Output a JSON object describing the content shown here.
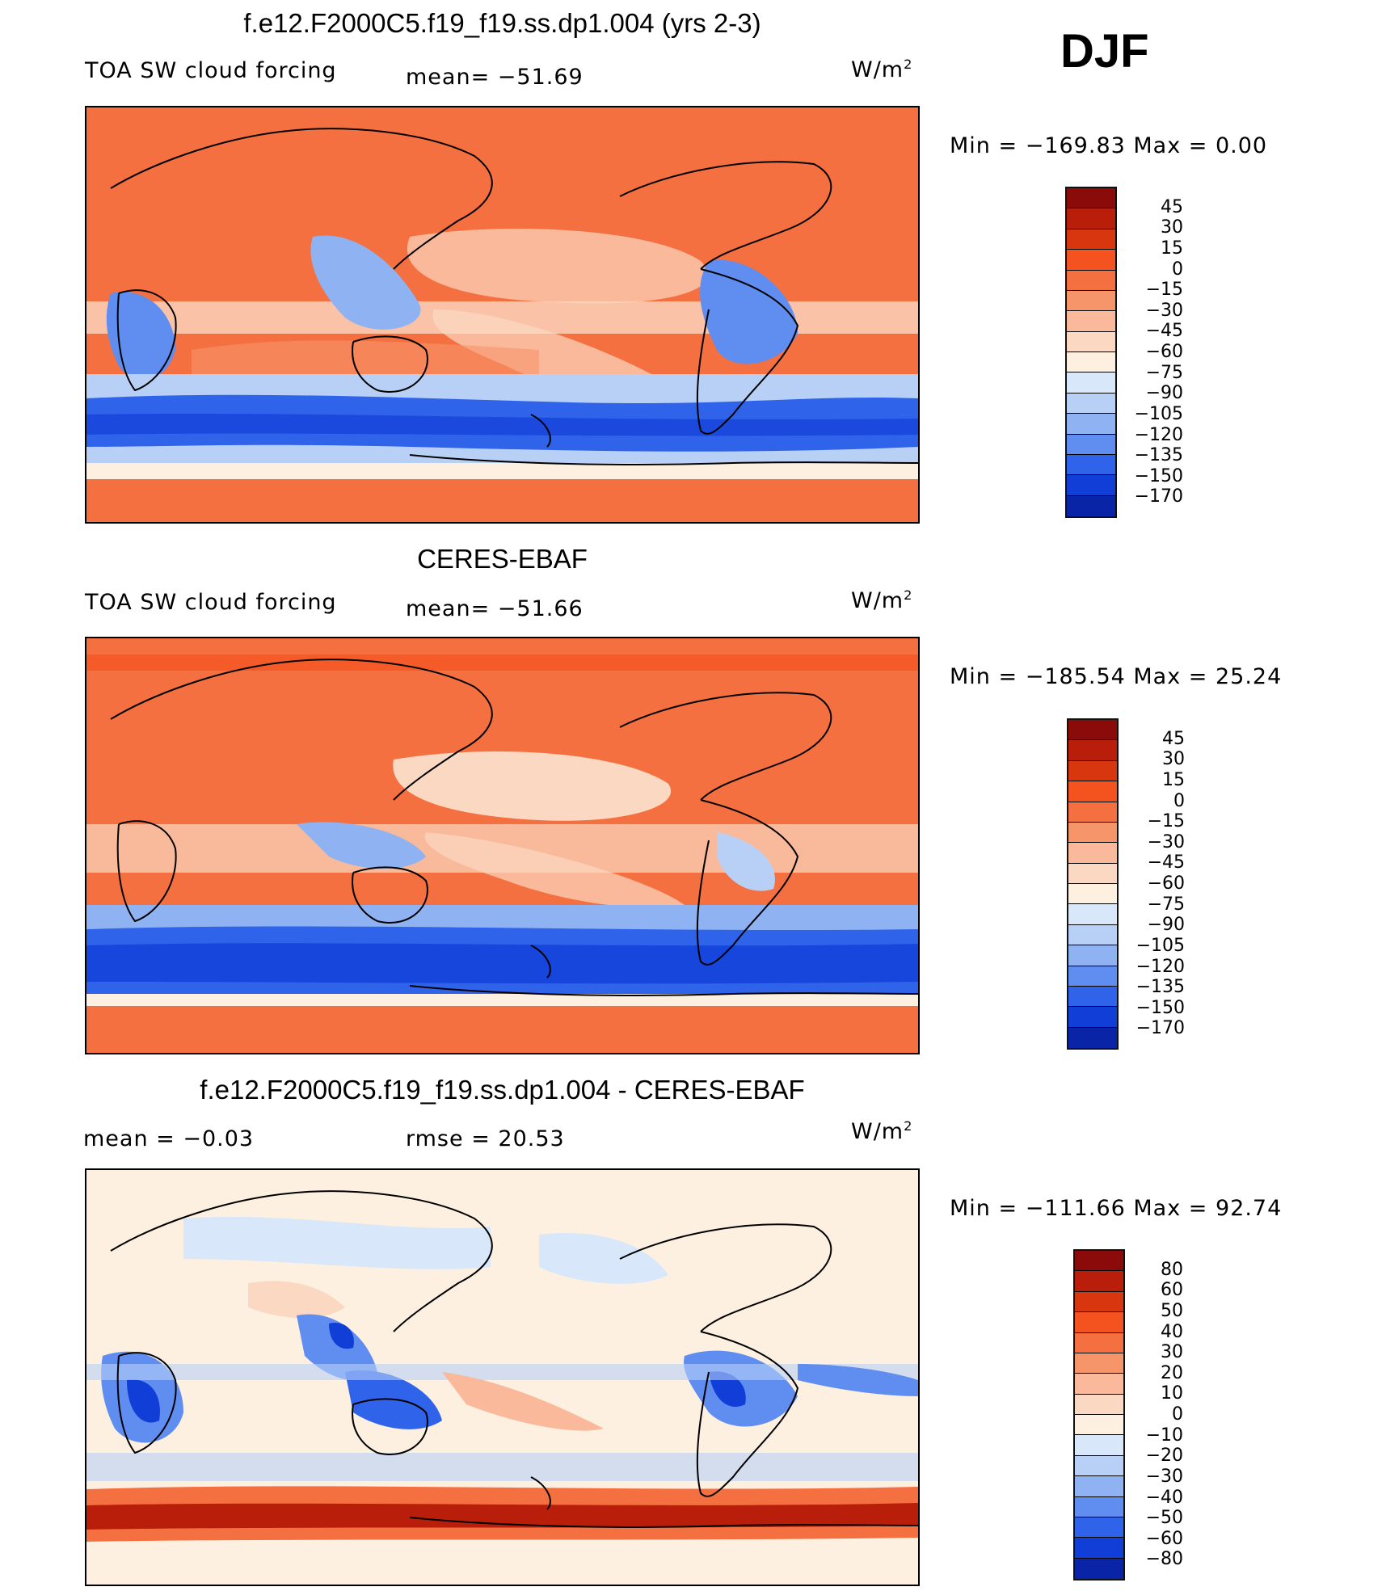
{
  "season": "DJF",
  "units_base": "W/m",
  "units_exp": "2",
  "panels": [
    {
      "title": "f.e12.F2000C5.f19_f19.ss.dp1.004 (yrs 2-3)",
      "variable": "TOA SW cloud forcing",
      "stat1": "mean=  −51.69",
      "stat2": "",
      "minmax": "Min  =  −169.83  Max  =     0.00",
      "scheme": "abs"
    },
    {
      "title": "CERES-EBAF",
      "variable": "TOA SW cloud forcing",
      "stat1": "mean=  −51.66",
      "stat2": "",
      "minmax": "Min  =  −185.54  Max  =    25.24",
      "scheme": "abs"
    },
    {
      "title": "f.e12.F2000C5.f19_f19.ss.dp1.004 - CERES-EBAF",
      "variable": "",
      "stat1": "mean  =    −0.03",
      "stat2": "rmse  =    20.53",
      "minmax": "Min  =  −111.66  Max  =    92.74",
      "scheme": "diff"
    }
  ],
  "colorbars": {
    "abs": {
      "labels": [
        "45",
        "30",
        "15",
        "0",
        "−15",
        "−30",
        "−45",
        "−60",
        "−75",
        "−90",
        "−105",
        "−120",
        "−135",
        "−150",
        "−170"
      ],
      "colors": [
        "#8b0a0a",
        "#b81e0a",
        "#d8360f",
        "#f4521e",
        "#f57040",
        "#f7956a",
        "#f9b99a",
        "#fbd8c2",
        "#fdf0e0",
        "#d8e8fa",
        "#b8d0f6",
        "#8fb3f2",
        "#5f8ef0",
        "#2f63ea",
        "#123ed8",
        "#0a24a8"
      ]
    },
    "diff": {
      "labels": [
        "80",
        "60",
        "50",
        "40",
        "30",
        "20",
        "10",
        "0",
        "−10",
        "−20",
        "−30",
        "−40",
        "−50",
        "−60",
        "−80"
      ],
      "colors": [
        "#8b0a0a",
        "#b81e0a",
        "#d8360f",
        "#f4521e",
        "#f57040",
        "#f7956a",
        "#f9b99a",
        "#fbd8c2",
        "#fdf0e0",
        "#d8e8fa",
        "#b8d0f6",
        "#8fb3f2",
        "#5f8ef0",
        "#2f63ea",
        "#123ed8",
        "#0a24a8"
      ]
    }
  }
}
